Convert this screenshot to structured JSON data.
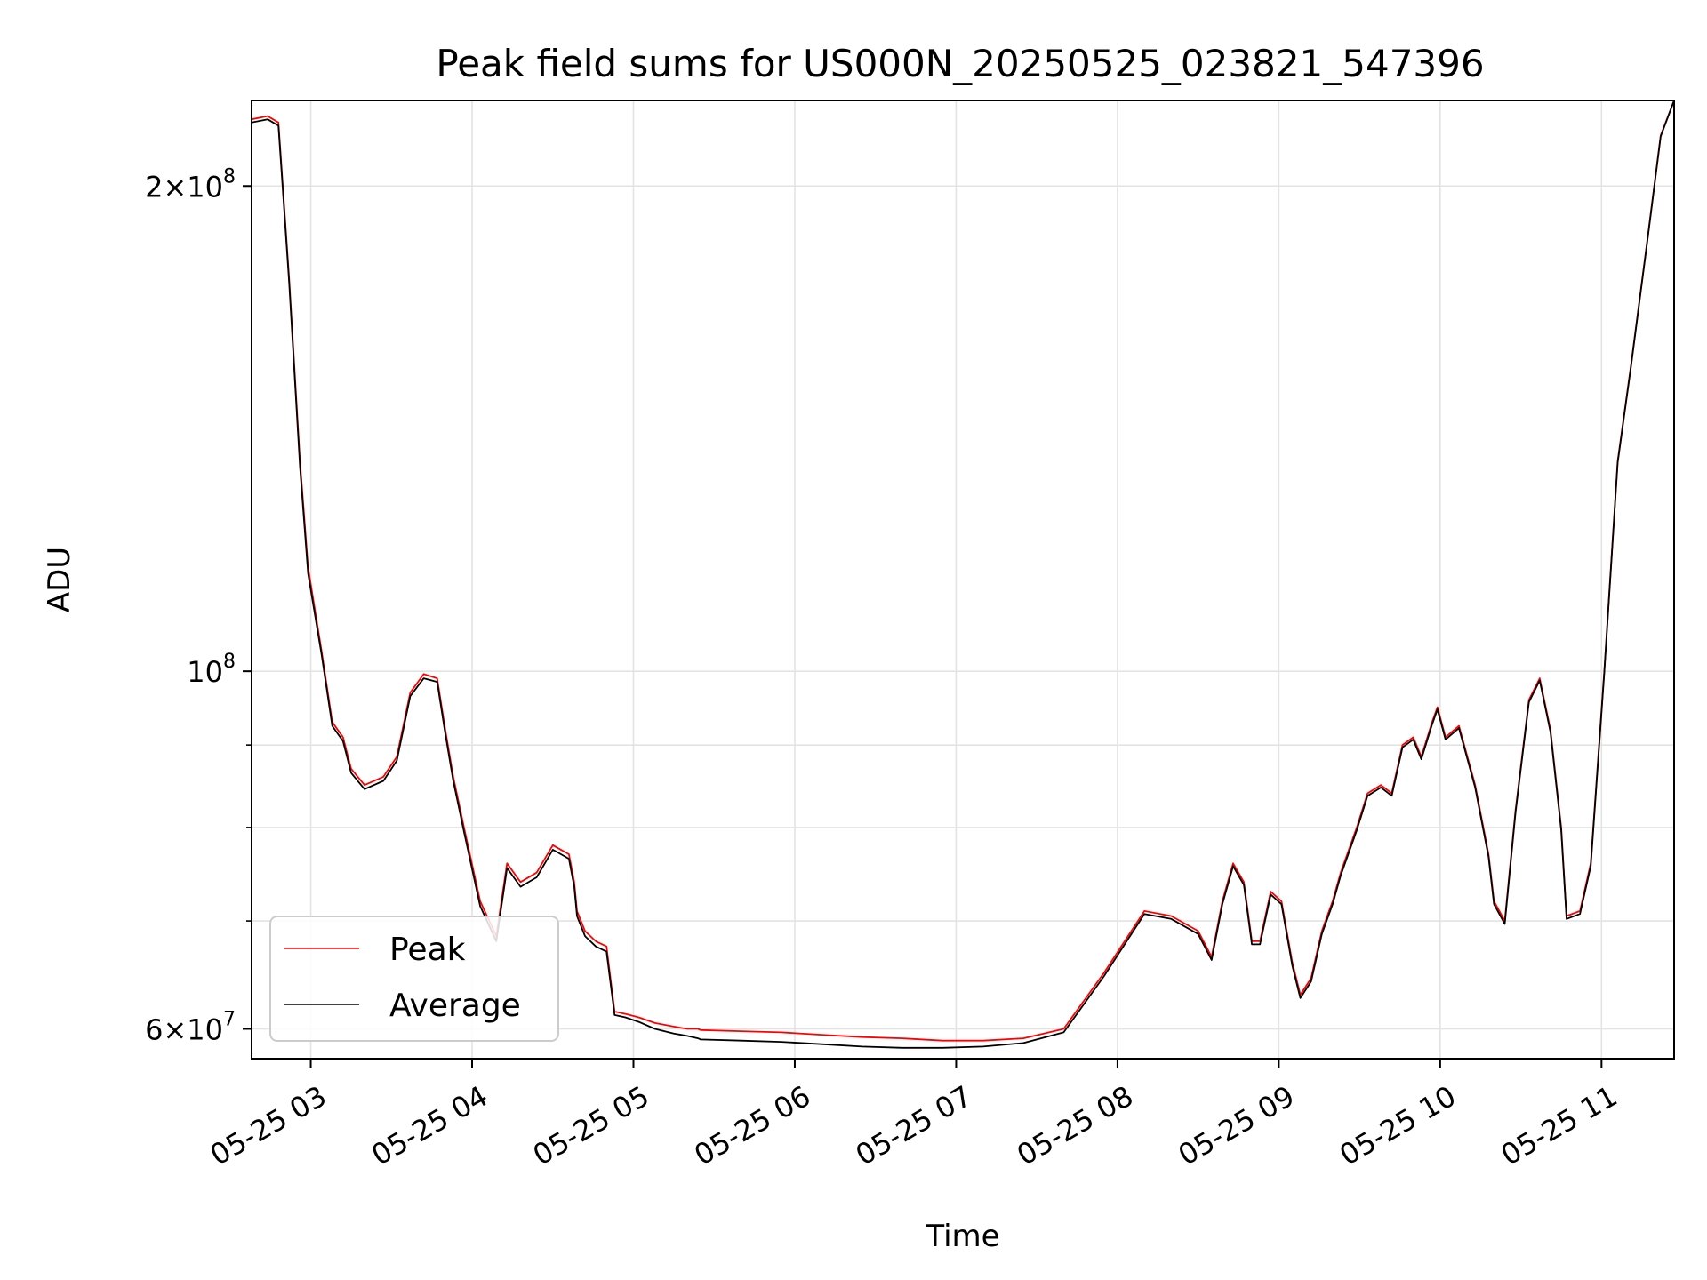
{
  "chart_data": {
    "type": "line",
    "title": "Peak field sums for US000N_20250525_023821_547396",
    "xlabel": "Time",
    "ylabel": "ADU",
    "yscale": "log",
    "grid": true,
    "legend_position": "bottom-left",
    "xlim": [
      "2025-05-25 02:38",
      "2025-05-25 11:27"
    ],
    "ylim": [
      57500000,
      226000000
    ],
    "x_ticks": [
      {
        "value": "2025-05-25 03:00",
        "label": "05-25 03"
      },
      {
        "value": "2025-05-25 04:00",
        "label": "05-25 04"
      },
      {
        "value": "2025-05-25 05:00",
        "label": "05-25 05"
      },
      {
        "value": "2025-05-25 06:00",
        "label": "05-25 06"
      },
      {
        "value": "2025-05-25 07:00",
        "label": "05-25 07"
      },
      {
        "value": "2025-05-25 08:00",
        "label": "05-25 08"
      },
      {
        "value": "2025-05-25 09:00",
        "label": "05-25 09"
      },
      {
        "value": "2025-05-25 10:00",
        "label": "05-25 10"
      },
      {
        "value": "2025-05-25 11:00",
        "label": "05-25 11"
      }
    ],
    "y_major_ticks": [
      {
        "value": 60000000,
        "base": "6×10",
        "exp": "7"
      },
      {
        "value": 100000000,
        "base": "10",
        "exp": "8"
      },
      {
        "value": 200000000,
        "base": "2×10",
        "exp": "8"
      }
    ],
    "y_minor_ticks": [
      70000000,
      80000000,
      90000000
    ],
    "series": [
      {
        "name": "Peak",
        "color": "#ff0000",
        "x": [
          "2025-05-25 02:38",
          "2025-05-25 02:44",
          "2025-05-25 02:48",
          "2025-05-25 02:52",
          "2025-05-25 02:56",
          "2025-05-25 02:59",
          "2025-05-25 03:04",
          "2025-05-25 03:08",
          "2025-05-25 03:12",
          "2025-05-25 03:15",
          "2025-05-25 03:20",
          "2025-05-25 03:27",
          "2025-05-25 03:32",
          "2025-05-25 03:37",
          "2025-05-25 03:42",
          "2025-05-25 03:47",
          "2025-05-25 03:50",
          "2025-05-25 03:53",
          "2025-05-25 03:57",
          "2025-05-25 04:03",
          "2025-05-25 04:09",
          "2025-05-25 04:13",
          "2025-05-25 04:18",
          "2025-05-25 04:24",
          "2025-05-25 04:30",
          "2025-05-25 04:36",
          "2025-05-25 04:38",
          "2025-05-25 04:39",
          "2025-05-25 04:42",
          "2025-05-25 04:46",
          "2025-05-25 04:50",
          "2025-05-25 04:53",
          "2025-05-25 04:57",
          "2025-05-25 05:02",
          "2025-05-25 05:08",
          "2025-05-25 05:15",
          "2025-05-25 05:20",
          "2025-05-25 05:24",
          "2025-05-25 05:25",
          "2025-05-25 05:40",
          "2025-05-25 05:55",
          "2025-05-25 06:10",
          "2025-05-25 06:25",
          "2025-05-25 06:40",
          "2025-05-25 06:55",
          "2025-05-25 07:10",
          "2025-05-25 07:25",
          "2025-05-25 07:40",
          "2025-05-25 07:55",
          "2025-05-25 08:10",
          "2025-05-25 08:20",
          "2025-05-25 08:30",
          "2025-05-25 08:35",
          "2025-05-25 08:39",
          "2025-05-25 08:43",
          "2025-05-25 08:47",
          "2025-05-25 08:50",
          "2025-05-25 08:53",
          "2025-05-25 08:57",
          "2025-05-25 09:01",
          "2025-05-25 09:05",
          "2025-05-25 09:08",
          "2025-05-25 09:12",
          "2025-05-25 09:16",
          "2025-05-25 09:20",
          "2025-05-25 09:23",
          "2025-05-25 09:29",
          "2025-05-25 09:33",
          "2025-05-25 09:38",
          "2025-05-25 09:42",
          "2025-05-25 09:46",
          "2025-05-25 09:50",
          "2025-05-25 09:53",
          "2025-05-25 09:57",
          "2025-05-25 09:59",
          "2025-05-25 10:02",
          "2025-05-25 10:07",
          "2025-05-25 10:13",
          "2025-05-25 10:18",
          "2025-05-25 10:20",
          "2025-05-25 10:24",
          "2025-05-25 10:28",
          "2025-05-25 10:33",
          "2025-05-25 10:37",
          "2025-05-25 10:41",
          "2025-05-25 10:45",
          "2025-05-25 10:47",
          "2025-05-25 10:52",
          "2025-05-25 10:56",
          "2025-05-25 11:01",
          "2025-05-25 11:06",
          "2025-05-25 11:11",
          "2025-05-25 11:17",
          "2025-05-25 11:22",
          "2025-05-25 11:27"
        ],
        "values": [
          220000000,
          221000000,
          219000000,
          175000000,
          135000000,
          116000000,
          103000000,
          93000000,
          91000000,
          87000000,
          85000000,
          86000000,
          88500000,
          97000000,
          99600000,
          99000000,
          92000000,
          86000000,
          80000000,
          72000000,
          68500000,
          76000000,
          74000000,
          75000000,
          78000000,
          77000000,
          74000000,
          71000000,
          69000000,
          68000000,
          67500000,
          61500000,
          61300000,
          61000000,
          60500000,
          60200000,
          60000000,
          60000000,
          59900000,
          59800000,
          59700000,
          59500000,
          59300000,
          59200000,
          59000000,
          59000000,
          59200000,
          60000000,
          65000000,
          71000000,
          70500000,
          69000000,
          66500000,
          72000000,
          76000000,
          74000000,
          68000000,
          68000000,
          73000000,
          72000000,
          66000000,
          63000000,
          64500000,
          69000000,
          72000000,
          75000000,
          80000000,
          84000000,
          85000000,
          84000000,
          90000000,
          91000000,
          88500000,
          93000000,
          95000000,
          91000000,
          92500000,
          85000000,
          77000000,
          72000000,
          70000000,
          82000000,
          96000000,
          99000000,
          92000000,
          80000000,
          70500000,
          71000000,
          76000000,
          100000000,
          135000000,
          155000000,
          185000000,
          215000000,
          226000000
        ]
      },
      {
        "name": "Average",
        "color": "#000000",
        "x": [
          "2025-05-25 02:38",
          "2025-05-25 02:44",
          "2025-05-25 02:48",
          "2025-05-25 02:52",
          "2025-05-25 02:56",
          "2025-05-25 02:59",
          "2025-05-25 03:04",
          "2025-05-25 03:08",
          "2025-05-25 03:12",
          "2025-05-25 03:15",
          "2025-05-25 03:20",
          "2025-05-25 03:27",
          "2025-05-25 03:32",
          "2025-05-25 03:37",
          "2025-05-25 03:42",
          "2025-05-25 03:47",
          "2025-05-25 03:50",
          "2025-05-25 03:53",
          "2025-05-25 03:57",
          "2025-05-25 04:03",
          "2025-05-25 04:09",
          "2025-05-25 04:13",
          "2025-05-25 04:18",
          "2025-05-25 04:24",
          "2025-05-25 04:30",
          "2025-05-25 04:36",
          "2025-05-25 04:38",
          "2025-05-25 04:39",
          "2025-05-25 04:42",
          "2025-05-25 04:46",
          "2025-05-25 04:50",
          "2025-05-25 04:53",
          "2025-05-25 04:57",
          "2025-05-25 05:02",
          "2025-05-25 05:08",
          "2025-05-25 05:15",
          "2025-05-25 05:20",
          "2025-05-25 05:24",
          "2025-05-25 05:25",
          "2025-05-25 05:40",
          "2025-05-25 05:55",
          "2025-05-25 06:10",
          "2025-05-25 06:25",
          "2025-05-25 06:40",
          "2025-05-25 06:55",
          "2025-05-25 07:10",
          "2025-05-25 07:25",
          "2025-05-25 07:40",
          "2025-05-25 07:55",
          "2025-05-25 08:10",
          "2025-05-25 08:20",
          "2025-05-25 08:30",
          "2025-05-25 08:35",
          "2025-05-25 08:39",
          "2025-05-25 08:43",
          "2025-05-25 08:47",
          "2025-05-25 08:50",
          "2025-05-25 08:53",
          "2025-05-25 08:57",
          "2025-05-25 09:01",
          "2025-05-25 09:05",
          "2025-05-25 09:08",
          "2025-05-25 09:12",
          "2025-05-25 09:16",
          "2025-05-25 09:20",
          "2025-05-25 09:23",
          "2025-05-25 09:29",
          "2025-05-25 09:33",
          "2025-05-25 09:38",
          "2025-05-25 09:42",
          "2025-05-25 09:46",
          "2025-05-25 09:50",
          "2025-05-25 09:53",
          "2025-05-25 09:57",
          "2025-05-25 09:59",
          "2025-05-25 10:02",
          "2025-05-25 10:07",
          "2025-05-25 10:13",
          "2025-05-25 10:18",
          "2025-05-25 10:20",
          "2025-05-25 10:24",
          "2025-05-25 10:28",
          "2025-05-25 10:33",
          "2025-05-25 10:37",
          "2025-05-25 10:41",
          "2025-05-25 10:45",
          "2025-05-25 10:47",
          "2025-05-25 10:52",
          "2025-05-25 10:56",
          "2025-05-25 11:01",
          "2025-05-25 11:06",
          "2025-05-25 11:11",
          "2025-05-25 11:17",
          "2025-05-25 11:22",
          "2025-05-25 11:27"
        ],
        "values": [
          219000000,
          220000000,
          218000000,
          174000000,
          134000000,
          115000000,
          102500000,
          92500000,
          90500000,
          86500000,
          84500000,
          85500000,
          88000000,
          96500000,
          99000000,
          98500000,
          91500000,
          85500000,
          79500000,
          71500000,
          68000000,
          75500000,
          73500000,
          74500000,
          77500000,
          76500000,
          73500000,
          70500000,
          68500000,
          67500000,
          67000000,
          61200000,
          61000000,
          60600000,
          60000000,
          59600000,
          59400000,
          59200000,
          59100000,
          59000000,
          58900000,
          58700000,
          58500000,
          58400000,
          58400000,
          58500000,
          58800000,
          59700000,
          64700000,
          70700000,
          70200000,
          68700000,
          66200000,
          71700000,
          75700000,
          73700000,
          67700000,
          67700000,
          72700000,
          71700000,
          65700000,
          62700000,
          64200000,
          68700000,
          71700000,
          74700000,
          79700000,
          83700000,
          84700000,
          83700000,
          89700000,
          90700000,
          88200000,
          92700000,
          94700000,
          90700000,
          92200000,
          84700000,
          76700000,
          71700000,
          69700000,
          81700000,
          95700000,
          98700000,
          91700000,
          79700000,
          70200000,
          70700000,
          75700000,
          99700000,
          134700000,
          154700000,
          184700000,
          214700000,
          226000000
        ]
      }
    ]
  }
}
